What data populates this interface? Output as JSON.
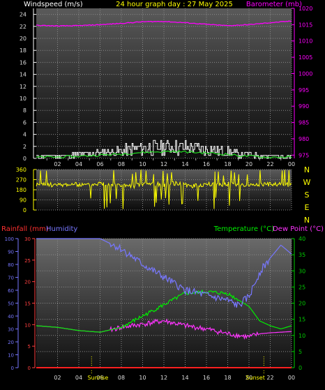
{
  "header": {
    "wind_label": "Windspeed (m/s)",
    "title": "24 hour graph day : 27 May 2025",
    "baro_label": "Barometer (mb)"
  },
  "bottom_header": {
    "rain_label": "Rainfall (mm)",
    "humidity_label": "Humidity",
    "temp_label": "Temperature (°C)",
    "dew_label": "Dew Point (°C)"
  },
  "colors": {
    "wind": "#ffffff",
    "gust": "#ffffff",
    "avg": "#22dd22",
    "barometer": "#ff00ff",
    "direction": "#ffff00",
    "rain": "#ff2020",
    "humidity": "#7777ff",
    "temperature": "#00ee00",
    "dewpoint": "#ff33ff",
    "title": "#ffff00",
    "tick_left": "#dddddd",
    "tick_right_top": "#ff00ff",
    "tick_right_bottom": "#00cc00",
    "tick_rain": "#ff4040",
    "tick_humidity": "#7777ff"
  },
  "chart_data": [
    {
      "type": "line",
      "name": "wind-barometer",
      "x_tick_labels": [
        "02",
        "04",
        "06",
        "08",
        "10",
        "12",
        "14",
        "16",
        "18",
        "20",
        "22",
        "00"
      ],
      "y_left_ticks": [
        "0",
        "2",
        "4",
        "6",
        "8",
        "10",
        "12",
        "14",
        "16",
        "18",
        "20",
        "22",
        "24"
      ],
      "y_right_ticks": [
        "975",
        "980",
        "985",
        "990",
        "995",
        "1000",
        "1005",
        "1010",
        "1015",
        "1020"
      ],
      "ylim_left": [
        0,
        25
      ],
      "ylim_right": [
        974,
        1020
      ],
      "series": [
        {
          "name": "Windspeed (m/s)",
          "axis": "left",
          "x": [
            0,
            1,
            2,
            3,
            4,
            5,
            6,
            7,
            8,
            9,
            10,
            11,
            12,
            13,
            14,
            15,
            16,
            17,
            18,
            19,
            20,
            21,
            22,
            23,
            24
          ],
          "values": [
            0.4,
            0.5,
            0.5,
            0.6,
            0.8,
            1.0,
            1.2,
            1.4,
            1.6,
            2.0,
            2.2,
            2.4,
            2.5,
            2.6,
            2.4,
            2.2,
            2.0,
            1.8,
            1.5,
            1.0,
            0.8,
            0.6,
            0.4,
            0.5,
            0.4
          ]
        },
        {
          "name": "Barometer (mb)",
          "axis": "right",
          "x": [
            0,
            2,
            4,
            6,
            8,
            10,
            12,
            14,
            16,
            18,
            20,
            22,
            24
          ],
          "values": [
            1014.8,
            1014.6,
            1014.7,
            1015.0,
            1015.4,
            1015.9,
            1016.0,
            1015.6,
            1015.1,
            1014.7,
            1015.0,
            1015.6,
            1016.1
          ]
        }
      ]
    },
    {
      "type": "scatter",
      "name": "wind-direction",
      "x_tick_labels": [
        "02",
        "04",
        "06",
        "08",
        "10",
        "12",
        "14",
        "16",
        "18",
        "20",
        "22",
        "00"
      ],
      "y_left_ticks": [
        "0",
        "90",
        "180",
        "270",
        "360"
      ],
      "y_right_ticks": [
        "N",
        "W",
        "S",
        "E",
        "N"
      ],
      "ylim": [
        0,
        360
      ],
      "series": [
        {
          "name": "Wind direction",
          "x": [
            0,
            1,
            2,
            3,
            4,
            5,
            6,
            7,
            8,
            9,
            10,
            11,
            12,
            13,
            14,
            15,
            16,
            17,
            18,
            19,
            20,
            21,
            22,
            23,
            24
          ],
          "values": [
            225,
            228,
            220,
            230,
            225,
            222,
            240,
            230,
            220,
            210,
            230,
            235,
            225,
            240,
            220,
            215,
            230,
            225,
            235,
            228,
            222,
            230,
            228,
            225,
            225
          ]
        }
      ]
    },
    {
      "type": "line",
      "name": "temperature-humidity",
      "x_tick_labels": [
        "02",
        "04",
        "06",
        "08",
        "10",
        "12",
        "14",
        "16",
        "18",
        "20",
        "22",
        "00"
      ],
      "y_left_ticks": [
        "0",
        "10",
        "20",
        "30",
        "40",
        "50",
        "60",
        "70",
        "80",
        "90",
        "100"
      ],
      "y_rain_ticks": [
        "0",
        "5",
        "10",
        "15",
        "20",
        "25",
        "30"
      ],
      "y_right_ticks": [
        "0",
        "5",
        "10",
        "15",
        "20",
        "25",
        "30",
        "35",
        "40"
      ],
      "ylim_left": [
        0,
        100
      ],
      "ylim_right": [
        0,
        40
      ],
      "annotations": [
        "Sunrise",
        "Sunset"
      ],
      "annotation_x": [
        5.2,
        21.4
      ],
      "series": [
        {
          "name": "Humidity",
          "axis": "left",
          "x": [
            0,
            2,
            4,
            6,
            8,
            10,
            12,
            14,
            16,
            18,
            19,
            20,
            21,
            22,
            23,
            24
          ],
          "values": [
            100,
            100,
            100,
            100,
            92,
            80,
            70,
            60,
            56,
            52,
            48,
            55,
            74,
            85,
            95,
            88
          ]
        },
        {
          "name": "Temperature (°C)",
          "axis": "right",
          "x": [
            0,
            2,
            4,
            6,
            8,
            10,
            12,
            14,
            16,
            18,
            20,
            21,
            22,
            23,
            24
          ],
          "values": [
            13,
            12.5,
            11.5,
            11,
            12.5,
            16,
            19.5,
            23,
            23.5,
            23,
            19,
            14.5,
            13,
            12,
            13
          ]
        },
        {
          "name": "Dew Point (°C)",
          "axis": "right",
          "x": [
            0,
            2,
            4,
            6,
            8,
            10,
            12,
            14,
            16,
            18,
            20,
            21,
            22,
            23,
            24
          ],
          "values": [
            13,
            12.5,
            11.5,
            11,
            12.5,
            13.5,
            14.5,
            13,
            12,
            10.5,
            9.5,
            10.5,
            10.8,
            11,
            11.2
          ]
        },
        {
          "name": "Rainfall (mm)",
          "axis": "right",
          "x": [
            0,
            24
          ],
          "values": [
            0,
            0
          ]
        }
      ]
    }
  ]
}
